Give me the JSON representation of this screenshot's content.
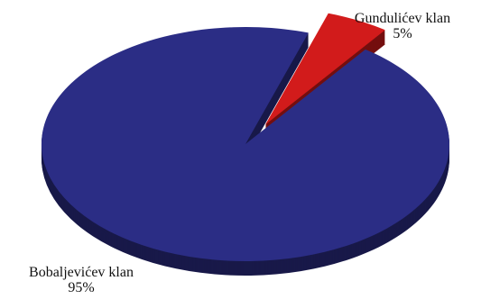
{
  "chart_data": {
    "type": "pie",
    "slices": [
      {
        "label": "Bobaljevićev klan",
        "value": 95,
        "value_label": "95%",
        "color": "#2b2d85"
      },
      {
        "label": "Gundulićev klan",
        "value": 5,
        "value_label": "5%",
        "color": "#d21b1b"
      }
    ],
    "exploded_slice": "Gundulićev klan",
    "style": "3d"
  }
}
